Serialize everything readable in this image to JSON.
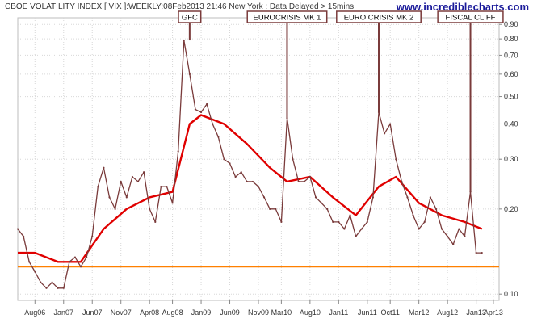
{
  "header": {
    "title": "CBOE VOLATILITY INDEX [ VIX ]:WEEKLY:08Feb2013 21:46 New York : Data Delayed > 15mins",
    "site": "www.incrediblecharts.com"
  },
  "colors": {
    "price": "#7a3b3b",
    "moving_average": "#e00000",
    "support_line": "#ff8000",
    "grid": "#d8d8d8",
    "annotation_box": "#7a3b3b"
  },
  "chart_data": {
    "type": "line",
    "y_scale": "log",
    "ylim": [
      0.095,
      0.95
    ],
    "xlim": [
      "2006-05",
      "2013-05"
    ],
    "y_ticks": [
      {
        "value": 0.1,
        "label": "0.10"
      },
      {
        "value": 0.2,
        "label": "0.20"
      },
      {
        "value": 0.3,
        "label": "0.30"
      },
      {
        "value": 0.4,
        "label": "0.40"
      },
      {
        "value": 0.5,
        "label": "0.50"
      },
      {
        "value": 0.6,
        "label": "0.60"
      },
      {
        "value": 0.7,
        "label": "0.70"
      },
      {
        "value": 0.8,
        "label": "0.80"
      },
      {
        "value": 0.9,
        "label": "0.90"
      }
    ],
    "x_ticks": [
      {
        "date": "2006-08",
        "label": "Aug06"
      },
      {
        "date": "2007-01",
        "label": "Jan07"
      },
      {
        "date": "2007-06",
        "label": "Jun07"
      },
      {
        "date": "2007-11",
        "label": "Nov07"
      },
      {
        "date": "2008-04",
        "label": "Apr08"
      },
      {
        "date": "2008-08",
        "label": "Aug08"
      },
      {
        "date": "2009-01",
        "label": "Jan09"
      },
      {
        "date": "2009-06",
        "label": "Jun09"
      },
      {
        "date": "2009-11",
        "label": "Nov09"
      },
      {
        "date": "2010-03",
        "label": "Mar10"
      },
      {
        "date": "2010-08",
        "label": "Aug10"
      },
      {
        "date": "2011-01",
        "label": "Jan11"
      },
      {
        "date": "2011-06",
        "label": "Jun11"
      },
      {
        "date": "2011-10",
        "label": "Oct11"
      },
      {
        "date": "2012-03",
        "label": "Mar12"
      },
      {
        "date": "2012-08",
        "label": "Aug12"
      },
      {
        "date": "2013-01",
        "label": "Jan13"
      },
      {
        "date": "2013-04",
        "label": "Apr13"
      }
    ],
    "series": [
      {
        "key": "price",
        "x": [
          "2006-05",
          "2006-06",
          "2006-07",
          "2006-08",
          "2006-09",
          "2006-10",
          "2006-11",
          "2006-12",
          "2007-01",
          "2007-02",
          "2007-03",
          "2007-04",
          "2007-05",
          "2007-06",
          "2007-07",
          "2007-08",
          "2007-09",
          "2007-10",
          "2007-11",
          "2007-12",
          "2008-01",
          "2008-02",
          "2008-03",
          "2008-04",
          "2008-05",
          "2008-06",
          "2008-07",
          "2008-08",
          "2008-09",
          "2008-10",
          "2008-11",
          "2008-12",
          "2009-01",
          "2009-02",
          "2009-03",
          "2009-04",
          "2009-05",
          "2009-06",
          "2009-07",
          "2009-08",
          "2009-09",
          "2009-10",
          "2009-11",
          "2009-12",
          "2010-01",
          "2010-02",
          "2010-03",
          "2010-04",
          "2010-05",
          "2010-06",
          "2010-07",
          "2010-08",
          "2010-09",
          "2010-10",
          "2010-11",
          "2010-12",
          "2011-01",
          "2011-02",
          "2011-03",
          "2011-04",
          "2011-05",
          "2011-06",
          "2011-07",
          "2011-08",
          "2011-09",
          "2011-10",
          "2011-11",
          "2011-12",
          "2012-01",
          "2012-02",
          "2012-03",
          "2012-04",
          "2012-05",
          "2012-06",
          "2012-07",
          "2012-08",
          "2012-09",
          "2012-10",
          "2012-11",
          "2012-12",
          "2013-01",
          "2013-02"
        ],
        "y": [
          0.17,
          0.16,
          0.13,
          0.12,
          0.11,
          0.105,
          0.11,
          0.105,
          0.105,
          0.13,
          0.135,
          0.125,
          0.135,
          0.16,
          0.24,
          0.28,
          0.22,
          0.2,
          0.25,
          0.22,
          0.26,
          0.25,
          0.27,
          0.2,
          0.18,
          0.24,
          0.24,
          0.21,
          0.32,
          0.79,
          0.6,
          0.45,
          0.44,
          0.47,
          0.4,
          0.36,
          0.3,
          0.29,
          0.26,
          0.27,
          0.25,
          0.25,
          0.24,
          0.22,
          0.2,
          0.2,
          0.18,
          0.42,
          0.3,
          0.25,
          0.25,
          0.26,
          0.22,
          0.21,
          0.2,
          0.18,
          0.18,
          0.17,
          0.19,
          0.16,
          0.17,
          0.18,
          0.22,
          0.44,
          0.37,
          0.4,
          0.3,
          0.25,
          0.22,
          0.19,
          0.17,
          0.18,
          0.22,
          0.2,
          0.17,
          0.16,
          0.15,
          0.17,
          0.16,
          0.23,
          0.14,
          0.14
        ]
      },
      {
        "key": "moving_average",
        "x": [
          "2006-05",
          "2006-08",
          "2006-12",
          "2007-04",
          "2007-08",
          "2007-12",
          "2008-04",
          "2008-08",
          "2008-11",
          "2009-01",
          "2009-05",
          "2009-09",
          "2010-01",
          "2010-04",
          "2010-08",
          "2010-12",
          "2011-04",
          "2011-08",
          "2011-11",
          "2012-03",
          "2012-07",
          "2012-11",
          "2013-02"
        ],
        "y": [
          0.14,
          0.14,
          0.13,
          0.13,
          0.17,
          0.2,
          0.22,
          0.23,
          0.4,
          0.43,
          0.4,
          0.34,
          0.28,
          0.25,
          0.26,
          0.22,
          0.19,
          0.24,
          0.26,
          0.21,
          0.19,
          0.18,
          0.17
        ]
      }
    ],
    "reference_line": {
      "y": 0.125
    },
    "annotations": [
      {
        "label": "GFC",
        "date": "2008-11",
        "top": 0.79
      },
      {
        "label": "EUROCRISIS MK 1",
        "date": "2010-04",
        "top": 0.42
      },
      {
        "label": "EURO CRISIS MK 2",
        "date": "2011-08",
        "top": 0.44
      },
      {
        "label": "FISCAL CLIFF",
        "date": "2012-12",
        "top": 0.23
      }
    ]
  }
}
